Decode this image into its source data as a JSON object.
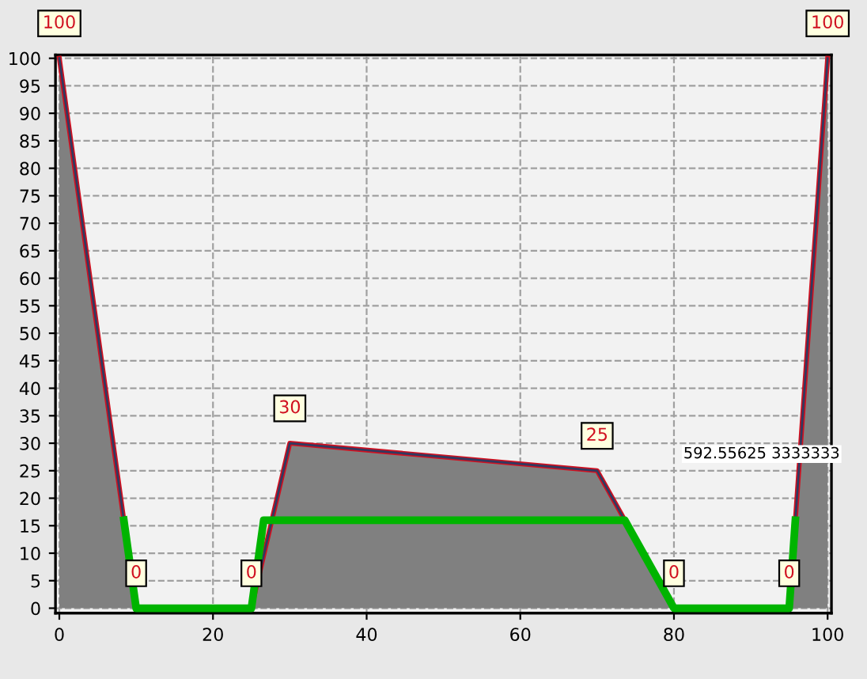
{
  "chart_data": {
    "type": "area",
    "series": [
      {
        "color": "#808080",
        "x": [
          0,
          10,
          25,
          30,
          70,
          80,
          95,
          100
        ],
        "values": [
          100,
          0,
          0,
          30,
          25,
          0,
          0,
          100
        ],
        "value_labels": [
          "100",
          "0",
          "0",
          "30",
          "25",
          "0",
          "0",
          "100"
        ]
      },
      {
        "type": "line",
        "color": "#00b400",
        "x": [
          8.4,
          10,
          25,
          26.6,
          73.6,
          80,
          95,
          95.8
        ],
        "values": [
          16,
          0,
          0,
          16,
          16,
          0,
          0,
          16
        ]
      }
    ],
    "xlim": [
      -0.5,
      100.5
    ],
    "ylim": [
      -0.9,
      100.6
    ],
    "xticks": [
      0,
      20,
      40,
      60,
      80,
      100
    ],
    "yticks": [
      0,
      5,
      10,
      15,
      20,
      25,
      30,
      35,
      40,
      45,
      50,
      55,
      60,
      65,
      70,
      75,
      80,
      85,
      90,
      95,
      100
    ],
    "grid": true,
    "line_style": "solid",
    "annotations": [
      "592.55625 3333333"
    ]
  }
}
